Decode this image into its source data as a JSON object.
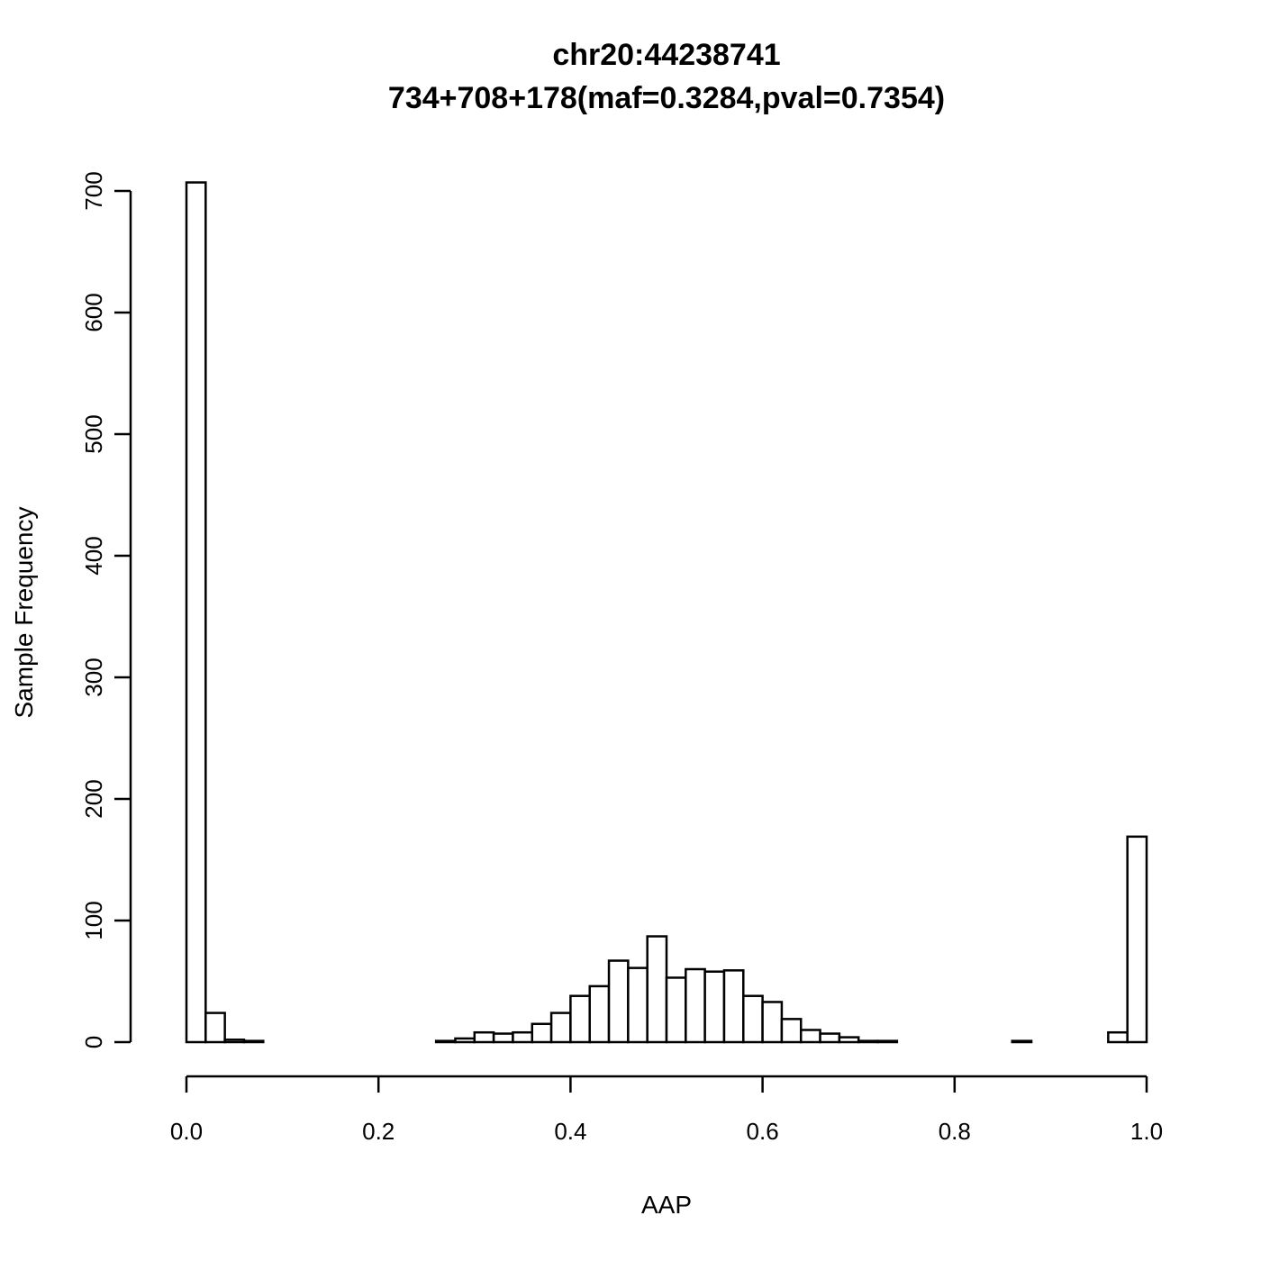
{
  "chart_data": {
    "type": "bar",
    "title": "chr20:44238741",
    "subtitle": "734+708+178(maf=0.3284,pval=0.7354)",
    "xlabel": "AAP",
    "ylabel": "Sample Frequency",
    "xlim": [
      0,
      1
    ],
    "ylim": [
      0,
      700
    ],
    "bin_width": 0.02,
    "x_ticks": [
      "0.0",
      "0.2",
      "0.4",
      "0.6",
      "0.8",
      "1.0"
    ],
    "y_ticks": [
      "0",
      "100",
      "200",
      "300",
      "400",
      "500",
      "600",
      "700"
    ],
    "grid": false,
    "bars": [
      {
        "x0": 0.0,
        "x1": 0.02,
        "value": 707
      },
      {
        "x0": 0.02,
        "x1": 0.04,
        "value": 24
      },
      {
        "x0": 0.04,
        "x1": 0.06,
        "value": 2
      },
      {
        "x0": 0.06,
        "x1": 0.08,
        "value": 1
      },
      {
        "x0": 0.26,
        "x1": 0.28,
        "value": 1
      },
      {
        "x0": 0.28,
        "x1": 0.3,
        "value": 3
      },
      {
        "x0": 0.3,
        "x1": 0.32,
        "value": 8
      },
      {
        "x0": 0.32,
        "x1": 0.34,
        "value": 7
      },
      {
        "x0": 0.34,
        "x1": 0.36,
        "value": 8
      },
      {
        "x0": 0.36,
        "x1": 0.38,
        "value": 15
      },
      {
        "x0": 0.38,
        "x1": 0.4,
        "value": 24
      },
      {
        "x0": 0.4,
        "x1": 0.42,
        "value": 38
      },
      {
        "x0": 0.42,
        "x1": 0.44,
        "value": 46
      },
      {
        "x0": 0.44,
        "x1": 0.46,
        "value": 67
      },
      {
        "x0": 0.46,
        "x1": 0.48,
        "value": 61
      },
      {
        "x0": 0.48,
        "x1": 0.5,
        "value": 87
      },
      {
        "x0": 0.5,
        "x1": 0.52,
        "value": 53
      },
      {
        "x0": 0.52,
        "x1": 0.54,
        "value": 60
      },
      {
        "x0": 0.54,
        "x1": 0.56,
        "value": 58
      },
      {
        "x0": 0.56,
        "x1": 0.58,
        "value": 59
      },
      {
        "x0": 0.58,
        "x1": 0.6,
        "value": 38
      },
      {
        "x0": 0.6,
        "x1": 0.62,
        "value": 33
      },
      {
        "x0": 0.62,
        "x1": 0.64,
        "value": 19
      },
      {
        "x0": 0.64,
        "x1": 0.66,
        "value": 10
      },
      {
        "x0": 0.66,
        "x1": 0.68,
        "value": 7
      },
      {
        "x0": 0.68,
        "x1": 0.7,
        "value": 4
      },
      {
        "x0": 0.7,
        "x1": 0.72,
        "value": 1
      },
      {
        "x0": 0.72,
        "x1": 0.74,
        "value": 1
      },
      {
        "x0": 0.86,
        "x1": 0.88,
        "value": 1
      },
      {
        "x0": 0.96,
        "x1": 0.98,
        "value": 8
      },
      {
        "x0": 0.98,
        "x1": 1.0,
        "value": 169
      }
    ]
  }
}
